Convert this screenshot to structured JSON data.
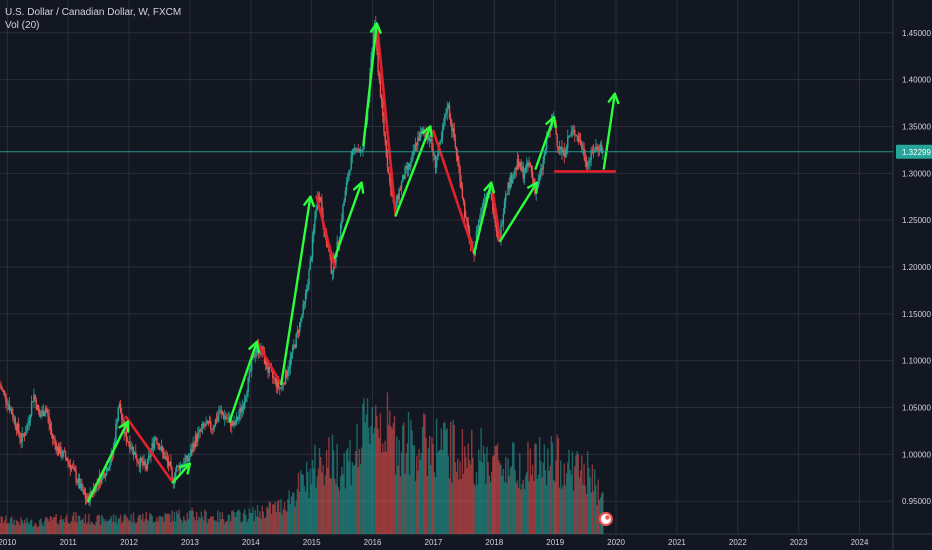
{
  "header": {
    "title": "U.S. Dollar / Canadian Dollar, W, FXCM",
    "indicator": "Vol (20)"
  },
  "colors": {
    "background": "#131722",
    "grid": "#2a2e39",
    "up": "#26a69a",
    "down": "#ef5350",
    "green_arrow": "#2bff3c",
    "red_line": "#e3212d",
    "price_line": "#26a69a",
    "axis_text": "#d1d4dc"
  },
  "current_price": {
    "label": "1.32299",
    "value": 1.32299
  },
  "chart_data": {
    "type": "candlestick",
    "title": "U.S. Dollar / Canadian Dollar, W, FXCM",
    "y_ticks": [
      {
        "value": 0.95,
        "label": "0.95000"
      },
      {
        "value": 1.0,
        "label": "1.00000"
      },
      {
        "value": 1.05,
        "label": "1.05000"
      },
      {
        "value": 1.1,
        "label": "1.10000"
      },
      {
        "value": 1.15,
        "label": "1.15000"
      },
      {
        "value": 1.2,
        "label": "1.20000"
      },
      {
        "value": 1.25,
        "label": "1.25000"
      },
      {
        "value": 1.3,
        "label": "1.30000"
      },
      {
        "value": 1.35,
        "label": "1.35000"
      },
      {
        "value": 1.4,
        "label": "1.40000"
      },
      {
        "value": 1.45,
        "label": "1.45000"
      }
    ],
    "x_ticks": [
      {
        "value": 2010.0,
        "label": "2010"
      },
      {
        "value": 2011.0,
        "label": "2011"
      },
      {
        "value": 2012.0,
        "label": "2012"
      },
      {
        "value": 2013.0,
        "label": "2013"
      },
      {
        "value": 2014.0,
        "label": "2014"
      },
      {
        "value": 2015.0,
        "label": "2015"
      },
      {
        "value": 2016.0,
        "label": "2016"
      },
      {
        "value": 2017.0,
        "label": "2017"
      },
      {
        "value": 2018.0,
        "label": "2018"
      },
      {
        "value": 2019.0,
        "label": "2019"
      },
      {
        "value": 2020.0,
        "label": "2020"
      },
      {
        "value": 2021.0,
        "label": "2021"
      },
      {
        "value": 2022.0,
        "label": "2022"
      },
      {
        "value": 2023.0,
        "label": "2023"
      },
      {
        "value": 2024.0,
        "label": "2024"
      }
    ],
    "xlim": [
      2009.88,
      2024.55
    ],
    "ylim": [
      0.915,
      1.485
    ],
    "grid": true,
    "price_path": [
      [
        2009.88,
        1.075
      ],
      [
        2010.0,
        1.06
      ],
      [
        2010.12,
        1.04
      ],
      [
        2010.25,
        1.015
      ],
      [
        2010.35,
        1.03
      ],
      [
        2010.45,
        1.065
      ],
      [
        2010.55,
        1.04
      ],
      [
        2010.65,
        1.05
      ],
      [
        2010.75,
        1.02
      ],
      [
        2010.85,
        1.005
      ],
      [
        2011.0,
        0.995
      ],
      [
        2011.12,
        0.98
      ],
      [
        2011.25,
        0.96
      ],
      [
        2011.33,
        0.95
      ],
      [
        2011.45,
        0.965
      ],
      [
        2011.55,
        0.975
      ],
      [
        2011.65,
        0.985
      ],
      [
        2011.75,
        1.0
      ],
      [
        2011.85,
        1.055
      ],
      [
        2011.95,
        1.02
      ],
      [
        2012.05,
        1.01
      ],
      [
        2012.15,
        0.995
      ],
      [
        2012.3,
        0.985
      ],
      [
        2012.45,
        1.02
      ],
      [
        2012.58,
        1.0
      ],
      [
        2012.7,
        0.985
      ],
      [
        2012.72,
        0.97
      ],
      [
        2012.8,
        0.985
      ],
      [
        2012.9,
        0.99
      ],
      [
        2013.0,
        0.995
      ],
      [
        2013.1,
        1.015
      ],
      [
        2013.25,
        1.03
      ],
      [
        2013.4,
        1.03
      ],
      [
        2013.5,
        1.045
      ],
      [
        2013.6,
        1.04
      ],
      [
        2013.75,
        1.03
      ],
      [
        2013.9,
        1.055
      ],
      [
        2014.0,
        1.085
      ],
      [
        2014.1,
        1.115
      ],
      [
        2014.2,
        1.11
      ],
      [
        2014.3,
        1.09
      ],
      [
        2014.4,
        1.08
      ],
      [
        2014.5,
        1.07
      ],
      [
        2014.6,
        1.085
      ],
      [
        2014.75,
        1.12
      ],
      [
        2014.9,
        1.16
      ],
      [
        2015.0,
        1.205
      ],
      [
        2015.1,
        1.27
      ],
      [
        2015.15,
        1.28
      ],
      [
        2015.22,
        1.24
      ],
      [
        2015.3,
        1.215
      ],
      [
        2015.35,
        1.195
      ],
      [
        2015.45,
        1.225
      ],
      [
        2015.55,
        1.27
      ],
      [
        2015.65,
        1.31
      ],
      [
        2015.75,
        1.33
      ],
      [
        2015.85,
        1.32
      ],
      [
        2015.95,
        1.38
      ],
      [
        2016.05,
        1.465
      ],
      [
        2016.1,
        1.42
      ],
      [
        2016.2,
        1.35
      ],
      [
        2016.3,
        1.29
      ],
      [
        2016.38,
        1.26
      ],
      [
        2016.45,
        1.28
      ],
      [
        2016.55,
        1.3
      ],
      [
        2016.65,
        1.31
      ],
      [
        2016.75,
        1.335
      ],
      [
        2016.85,
        1.345
      ],
      [
        2016.95,
        1.34
      ],
      [
        2017.05,
        1.31
      ],
      [
        2017.15,
        1.335
      ],
      [
        2017.25,
        1.375
      ],
      [
        2017.35,
        1.34
      ],
      [
        2017.45,
        1.3
      ],
      [
        2017.55,
        1.25
      ],
      [
        2017.67,
        1.21
      ],
      [
        2017.75,
        1.245
      ],
      [
        2017.85,
        1.275
      ],
      [
        2017.95,
        1.285
      ],
      [
        2018.05,
        1.235
      ],
      [
        2018.1,
        1.225
      ],
      [
        2018.2,
        1.28
      ],
      [
        2018.3,
        1.295
      ],
      [
        2018.4,
        1.31
      ],
      [
        2018.5,
        1.3
      ],
      [
        2018.6,
        1.31
      ],
      [
        2018.7,
        1.28
      ],
      [
        2018.8,
        1.305
      ],
      [
        2018.9,
        1.34
      ],
      [
        2019.0,
        1.36
      ],
      [
        2019.05,
        1.335
      ],
      [
        2019.15,
        1.32
      ],
      [
        2019.25,
        1.34
      ],
      [
        2019.35,
        1.345
      ],
      [
        2019.45,
        1.33
      ],
      [
        2019.55,
        1.31
      ],
      [
        2019.65,
        1.325
      ],
      [
        2019.75,
        1.33
      ],
      [
        2019.8,
        1.32299
      ]
    ],
    "green_arrows": [
      [
        [
          2011.33,
          0.95
        ],
        [
          2011.98,
          1.035
        ]
      ],
      [
        [
          2012.72,
          0.97
        ],
        [
          2013.0,
          0.99
        ]
      ],
      [
        [
          2013.65,
          1.035
        ],
        [
          2014.1,
          1.12
        ]
      ],
      [
        [
          2014.5,
          1.075
        ],
        [
          2014.98,
          1.275
        ]
      ],
      [
        [
          2015.38,
          1.21
        ],
        [
          2015.82,
          1.29
        ]
      ],
      [
        [
          2015.85,
          1.33
        ],
        [
          2016.07,
          1.46
        ]
      ],
      [
        [
          2016.38,
          1.255
        ],
        [
          2016.95,
          1.35
        ]
      ],
      [
        [
          2017.67,
          1.215
        ],
        [
          2017.95,
          1.29
        ]
      ],
      [
        [
          2018.1,
          1.228
        ],
        [
          2018.7,
          1.29
        ]
      ],
      [
        [
          2018.68,
          1.305
        ],
        [
          2018.98,
          1.36
        ]
      ],
      [
        [
          2019.8,
          1.305
        ],
        [
          2019.98,
          1.385
        ]
      ]
    ],
    "red_lines": [
      [
        [
          2011.95,
          1.04
        ],
        [
          2012.72,
          0.97
        ]
      ],
      [
        [
          2014.1,
          1.12
        ],
        [
          2014.5,
          1.075
        ]
      ],
      [
        [
          2015.08,
          1.275
        ],
        [
          2015.38,
          1.2
        ]
      ],
      [
        [
          2016.08,
          1.455
        ],
        [
          2016.38,
          1.255
        ]
      ],
      [
        [
          2017.0,
          1.345
        ],
        [
          2017.67,
          1.215
        ]
      ],
      [
        [
          2017.95,
          1.29
        ],
        [
          2018.1,
          1.228
        ]
      ],
      [
        [
          2019.0,
          1.302
        ],
        [
          2019.98,
          1.302
        ]
      ]
    ],
    "volume_scale_max": 1.0,
    "volume_profile": [
      [
        2009.88,
        0.1
      ],
      [
        2010.5,
        0.08
      ],
      [
        2011.0,
        0.12
      ],
      [
        2011.5,
        0.1
      ],
      [
        2012.0,
        0.12
      ],
      [
        2012.5,
        0.12
      ],
      [
        2013.0,
        0.14
      ],
      [
        2013.5,
        0.12
      ],
      [
        2014.0,
        0.14
      ],
      [
        2014.5,
        0.2
      ],
      [
        2014.9,
        0.38
      ],
      [
        2015.2,
        0.55
      ],
      [
        2015.5,
        0.5
      ],
      [
        2015.8,
        0.62
      ],
      [
        2016.0,
        0.9
      ],
      [
        2016.3,
        0.7
      ],
      [
        2016.7,
        0.62
      ],
      [
        2017.0,
        0.65
      ],
      [
        2017.4,
        0.58
      ],
      [
        2017.8,
        0.55
      ],
      [
        2018.2,
        0.5
      ],
      [
        2018.6,
        0.5
      ],
      [
        2019.0,
        0.52
      ],
      [
        2019.5,
        0.45
      ],
      [
        2019.8,
        0.25
      ]
    ]
  }
}
